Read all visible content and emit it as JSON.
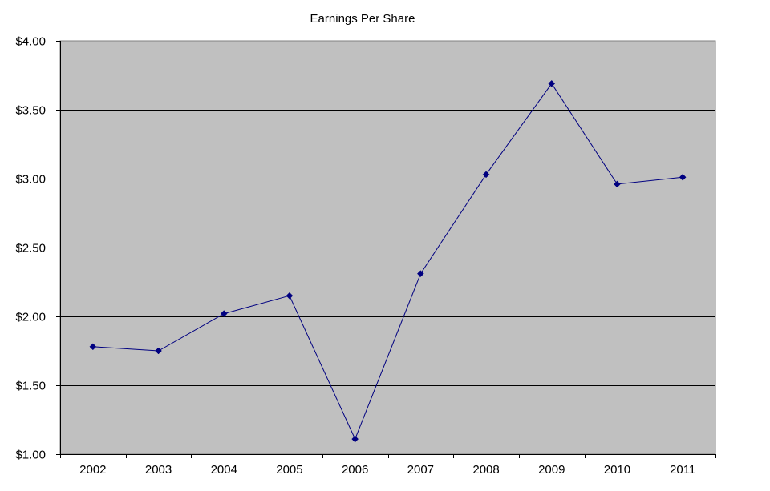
{
  "chart_data": {
    "type": "line",
    "title": "Earnings Per Share",
    "xlabel": "",
    "ylabel": "",
    "categories": [
      "2002",
      "2003",
      "2004",
      "2005",
      "2006",
      "2007",
      "2008",
      "2009",
      "2010",
      "2011"
    ],
    "series": [
      {
        "name": "Earnings Per Share",
        "values": [
          1.78,
          1.75,
          2.02,
          2.15,
          1.11,
          2.31,
          3.03,
          3.69,
          2.96,
          3.01
        ],
        "color": "#000080",
        "marker": "diamond"
      }
    ],
    "ylim": [
      1.0,
      4.0
    ],
    "yticks": [
      1.0,
      1.5,
      2.0,
      2.5,
      3.0,
      3.5,
      4.0
    ],
    "ytick_labels": [
      "$1.00",
      "$1.50",
      "$2.00",
      "$2.50",
      "$3.00",
      "$3.50",
      "$4.00"
    ],
    "grid": true,
    "legend": "none",
    "plot_background": "#c0c0c0",
    "gridline_color": "#000000"
  }
}
